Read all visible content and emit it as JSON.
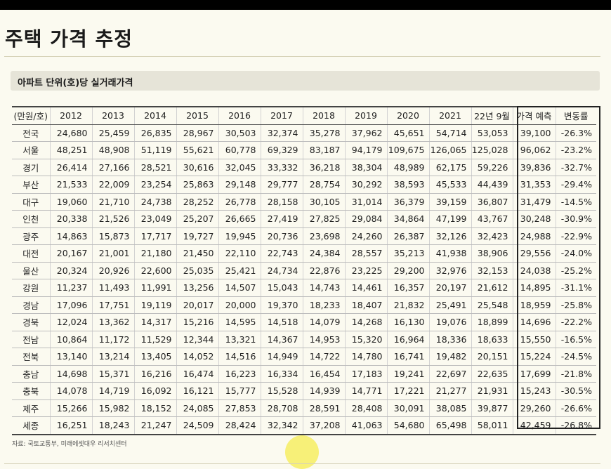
{
  "page": {
    "title": "주택 가격 추정"
  },
  "section": {
    "title": "아파트 단위(호)당 실거래가격"
  },
  "table": {
    "headers": [
      "(만원/호)",
      "2012",
      "2013",
      "2014",
      "2015",
      "2016",
      "2017",
      "2018",
      "2019",
      "2020",
      "2021",
      "22년 9월",
      "가격 예측",
      "변동률"
    ],
    "rows": [
      [
        "전국",
        "24,680",
        "25,459",
        "26,835",
        "28,967",
        "30,503",
        "32,374",
        "35,278",
        "37,962",
        "45,651",
        "54,714",
        "53,053",
        "39,100",
        "-26.3%"
      ],
      [
        "서울",
        "48,251",
        "48,908",
        "51,119",
        "55,621",
        "60,778",
        "69,329",
        "83,187",
        "94,179",
        "109,675",
        "126,065",
        "125,028",
        "96,062",
        "-23.2%"
      ],
      [
        "경기",
        "26,414",
        "27,166",
        "28,521",
        "30,616",
        "32,045",
        "33,332",
        "36,218",
        "38,304",
        "48,989",
        "62,175",
        "59,226",
        "39,836",
        "-32.7%"
      ],
      [
        "부산",
        "21,533",
        "22,009",
        "23,254",
        "25,863",
        "29,148",
        "29,777",
        "28,754",
        "30,292",
        "38,593",
        "45,533",
        "44,439",
        "31,353",
        "-29.4%"
      ],
      [
        "대구",
        "19,060",
        "21,710",
        "24,738",
        "28,252",
        "26,778",
        "28,158",
        "30,105",
        "31,014",
        "36,379",
        "39,159",
        "36,807",
        "31,479",
        "-14.5%"
      ],
      [
        "인천",
        "20,338",
        "21,526",
        "23,049",
        "25,207",
        "26,665",
        "27,419",
        "27,825",
        "29,084",
        "34,864",
        "47,199",
        "43,767",
        "30,248",
        "-30.9%"
      ],
      [
        "광주",
        "14,863",
        "15,873",
        "17,717",
        "19,727",
        "19,945",
        "20,736",
        "23,698",
        "24,260",
        "26,387",
        "32,126",
        "32,423",
        "24,988",
        "-22.9%"
      ],
      [
        "대전",
        "20,167",
        "21,001",
        "21,180",
        "21,450",
        "22,110",
        "22,743",
        "24,384",
        "28,557",
        "35,213",
        "41,938",
        "38,906",
        "29,556",
        "-24.0%"
      ],
      [
        "울산",
        "20,324",
        "20,926",
        "22,600",
        "25,035",
        "25,421",
        "24,734",
        "22,876",
        "23,225",
        "29,200",
        "32,976",
        "32,153",
        "24,038",
        "-25.2%"
      ],
      [
        "강원",
        "11,237",
        "11,493",
        "11,991",
        "13,256",
        "14,507",
        "15,043",
        "14,743",
        "14,461",
        "16,357",
        "20,197",
        "21,612",
        "14,895",
        "-31.1%"
      ],
      [
        "경남",
        "17,096",
        "17,751",
        "19,119",
        "20,017",
        "20,000",
        "19,370",
        "18,233",
        "18,407",
        "21,832",
        "25,491",
        "25,548",
        "18,959",
        "-25.8%"
      ],
      [
        "경북",
        "12,024",
        "13,362",
        "14,317",
        "15,216",
        "14,595",
        "14,518",
        "14,079",
        "14,268",
        "16,130",
        "19,076",
        "18,899",
        "14,696",
        "-22.2%"
      ],
      [
        "전남",
        "10,864",
        "11,172",
        "11,529",
        "12,344",
        "13,321",
        "14,367",
        "14,953",
        "15,320",
        "16,964",
        "18,336",
        "18,633",
        "15,550",
        "-16.5%"
      ],
      [
        "전북",
        "13,140",
        "13,214",
        "13,405",
        "14,052",
        "14,516",
        "14,949",
        "14,722",
        "14,780",
        "16,741",
        "19,482",
        "20,151",
        "15,224",
        "-24.5%"
      ],
      [
        "충남",
        "14,698",
        "15,371",
        "16,216",
        "16,474",
        "16,223",
        "16,334",
        "16,454",
        "17,183",
        "19,241",
        "22,697",
        "22,635",
        "17,699",
        "-21.8%"
      ],
      [
        "충북",
        "14,078",
        "14,719",
        "16,092",
        "16,121",
        "15,777",
        "15,528",
        "14,939",
        "14,771",
        "17,221",
        "21,277",
        "21,931",
        "15,243",
        "-30.5%"
      ],
      [
        "제주",
        "15,266",
        "15,982",
        "18,152",
        "24,085",
        "27,853",
        "28,708",
        "28,591",
        "28,408",
        "30,091",
        "38,085",
        "39,877",
        "29,260",
        "-26.6%"
      ],
      [
        "세종",
        "16,251",
        "18,243",
        "21,247",
        "24,509",
        "28,424",
        "32,342",
        "37,208",
        "41,063",
        "54,680",
        "65,498",
        "58,011",
        "42,459",
        "-26.8%"
      ]
    ]
  },
  "source": {
    "text": "자료: 국토교통부, 미래에셋대우 리서치센터"
  }
}
